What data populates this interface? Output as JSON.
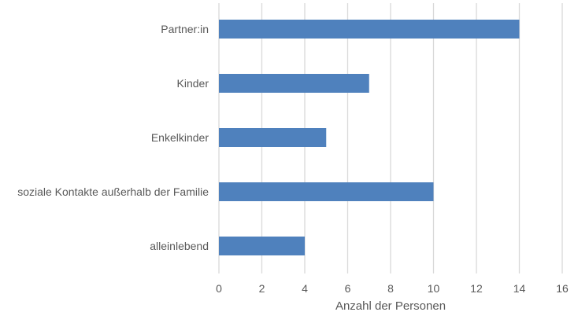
{
  "chart_data": {
    "type": "bar",
    "orientation": "horizontal",
    "categories": [
      "Partner:in",
      "Kinder",
      "Enkelkinder",
      "soziale Kontakte außerhalb der Familie",
      "alleinlebend"
    ],
    "values": [
      14,
      7,
      5,
      10,
      4
    ],
    "title": "",
    "xlabel": "Anzahl der Personen",
    "ylabel": "",
    "xlim": [
      0,
      16
    ],
    "xticks": [
      "0",
      "2",
      "4",
      "6",
      "8",
      "10",
      "12",
      "14",
      "16"
    ],
    "grid": "vertical",
    "legend": "none",
    "colors": {
      "bar": "#4f81bd",
      "grid": "#d9d9d9",
      "text": "#595959"
    }
  }
}
